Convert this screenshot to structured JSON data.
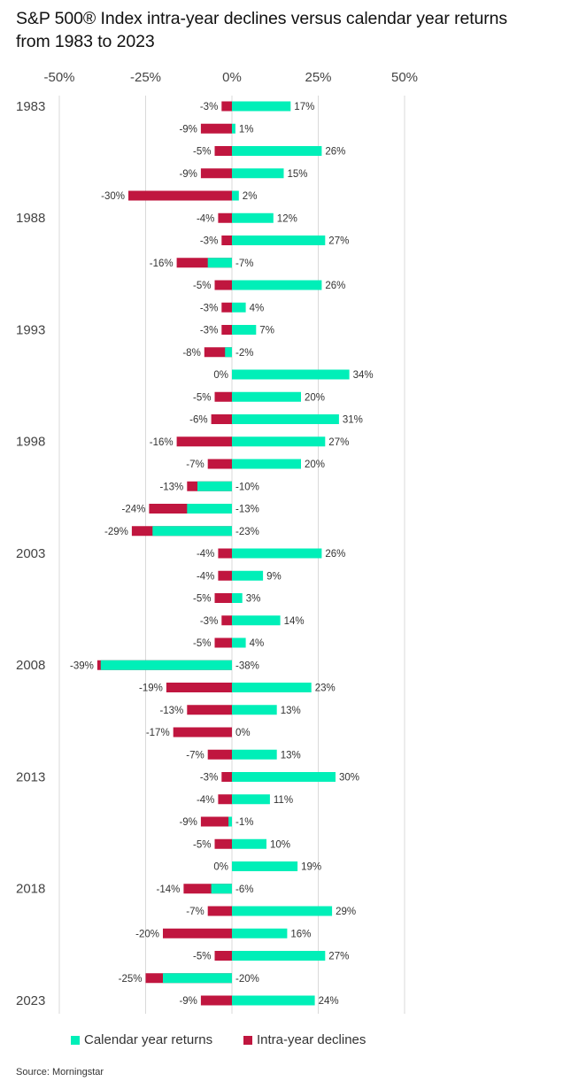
{
  "chart_title_line1": "S&P 500® Index intra-year declines versus calendar year returns",
  "chart_title_line2": "from 1983 to 2023",
  "source": "Source: Morningstar",
  "colors": {
    "returns": "#00efb8",
    "declines": "#c0163f",
    "grid": "#d9d9d9",
    "text": "#333333"
  },
  "chart_data": {
    "type": "bar",
    "orientation": "horizontal",
    "xlim": [
      -50,
      50
    ],
    "x_ticks": [
      "-50%",
      "-25%",
      "0%",
      "25%",
      "50%"
    ],
    "x_tick_values": [
      -50,
      -25,
      0,
      25,
      50
    ],
    "year_labels": [
      "1983",
      "1988",
      "1993",
      "1998",
      "2003",
      "2008",
      "2013",
      "2018",
      "2023"
    ],
    "years": [
      1983,
      1984,
      1985,
      1986,
      1987,
      1988,
      1989,
      1990,
      1991,
      1992,
      1993,
      1994,
      1995,
      1996,
      1997,
      1998,
      1999,
      2000,
      2001,
      2002,
      2003,
      2004,
      2005,
      2006,
      2007,
      2008,
      2009,
      2010,
      2011,
      2012,
      2013,
      2014,
      2015,
      2016,
      2017,
      2018,
      2019,
      2020,
      2021,
      2022,
      2023
    ],
    "grid": true,
    "legend_position": "bottom",
    "series": [
      {
        "name": "Calendar year returns",
        "values": [
          17,
          1,
          26,
          15,
          2,
          12,
          27,
          -7,
          26,
          4,
          7,
          -2,
          34,
          20,
          31,
          27,
          20,
          -10,
          -13,
          -23,
          26,
          9,
          3,
          14,
          4,
          -38,
          23,
          13,
          0,
          13,
          30,
          11,
          -1,
          10,
          19,
          -6,
          29,
          16,
          27,
          -20,
          24
        ],
        "labels": [
          "17%",
          "1%",
          "26%",
          "15%",
          "2%",
          "12%",
          "27%",
          "-7%",
          "26%",
          "4%",
          "7%",
          "-2%",
          "34%",
          "20%",
          "31%",
          "27%",
          "20%",
          "-10%",
          "-13%",
          "-23%",
          "26%",
          "9%",
          "3%",
          "14%",
          "4%",
          "-38%",
          "23%",
          "13%",
          "0%",
          "13%",
          "30%",
          "11%",
          "-1%",
          "10%",
          "19%",
          "-6%",
          "29%",
          "16%",
          "27%",
          "-20%",
          "24%"
        ]
      },
      {
        "name": "Intra-year declines",
        "values": [
          -3,
          -9,
          -5,
          -9,
          -30,
          -4,
          -3,
          -16,
          -5,
          -3,
          -3,
          -8,
          0,
          -5,
          -6,
          -16,
          -7,
          -13,
          -24,
          -29,
          -4,
          -4,
          -5,
          -3,
          -5,
          -39,
          -19,
          -13,
          -17,
          -7,
          -3,
          -4,
          -9,
          -5,
          0,
          -14,
          -7,
          -20,
          -5,
          -25,
          -9
        ],
        "labels": [
          "-3%",
          "-9%",
          "-5%",
          "-9%",
          "-30%",
          "-4%",
          "-3%",
          "-16%",
          "-5%",
          "-3%",
          "-3%",
          "-8%",
          "0%",
          "-5%",
          "-6%",
          "-16%",
          "-7%",
          "-13%",
          "-24%",
          "-29%",
          "-4%",
          "-4%",
          "-5%",
          "-3%",
          "-5%",
          "-39%",
          "-19%",
          "-13%",
          "-17%",
          "-7%",
          "-3%",
          "-4%",
          "-9%",
          "-5%",
          "0%",
          "-14%",
          "-7%",
          "-20%",
          "-5%",
          "-25%",
          "-9%"
        ]
      }
    ]
  }
}
